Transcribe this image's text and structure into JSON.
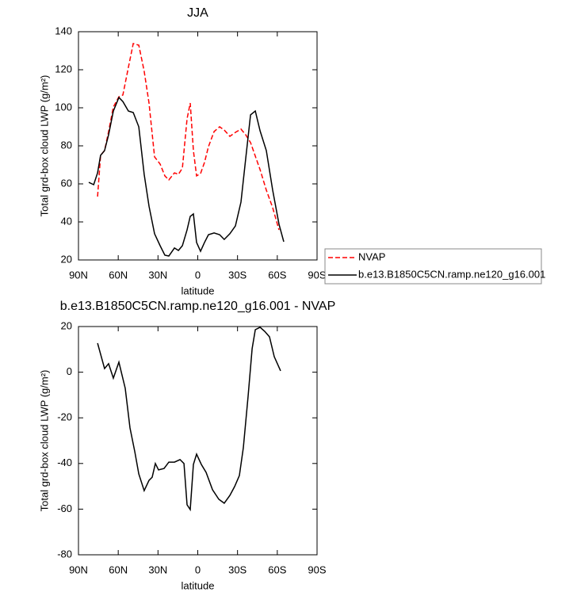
{
  "chart_data": [
    {
      "type": "line",
      "title": "JJA",
      "xlabel": "latitude",
      "ylabel": "Total grd-box cloud LWP (g/m²)",
      "x": [
        82.2,
        78.5,
        75.6,
        73.3,
        70.3,
        67.3,
        63.7,
        59.5,
        56.5,
        52.3,
        48.7,
        44.5,
        40.4,
        36.8,
        32.6,
        28.4,
        24.8,
        21.8,
        17.6,
        14.6,
        11.6,
        8.1,
        5.7,
        3.3,
        0.9,
        -2.1,
        -5.1,
        -8.1,
        -12.3,
        -16.5,
        -20,
        -24.2,
        -28.4,
        -32.6,
        -36.2,
        -39.8,
        -43.4,
        -47,
        -51.7,
        -56.5,
        -61.3,
        -64.9
      ],
      "series": [
        {
          "name": "NVAP",
          "color": "#ff0000",
          "line_style": "dashed",
          "values": [
            null,
            null,
            53.3,
            75,
            77.5,
            87.5,
            100.4,
            105.8,
            106.7,
            121.3,
            133.8,
            132.9,
            119.2,
            102.5,
            74.2,
            70.4,
            64.2,
            62.1,
            65.8,
            65,
            68.3,
            94.2,
            102.5,
            77.5,
            64.2,
            65.4,
            71.3,
            79.6,
            87.5,
            90,
            88.3,
            85,
            87.1,
            88.8,
            85.8,
            81.7,
            74.6,
            67.5,
            56.7,
            47.5,
            35.8,
            null
          ]
        },
        {
          "name": "b.e13.B1850C5CN.ramp.ne120_g16.001",
          "color": "#000000",
          "line_style": "solid",
          "values": [
            60.8,
            59.6,
            65.8,
            75,
            77.5,
            85.8,
            98.3,
            105.4,
            103.3,
            98.3,
            97.5,
            90,
            65,
            48.3,
            33.8,
            27.5,
            22.5,
            22.1,
            26.3,
            25,
            27.5,
            35.8,
            42.9,
            44.2,
            29.2,
            24.6,
            29.2,
            33.3,
            34.2,
            33.3,
            30.8,
            33.8,
            37.9,
            50.4,
            73.3,
            96.3,
            98.3,
            87.9,
            77.5,
            56.7,
            38.8,
            29.6
          ]
        }
      ],
      "xlim": [
        90,
        -90
      ],
      "xticks": [
        {
          "value": 90,
          "label": "90N"
        },
        {
          "value": 60,
          "label": "60N"
        },
        {
          "value": 30,
          "label": "30N"
        },
        0,
        {
          "value": -30,
          "label": "30S"
        },
        {
          "value": -60,
          "label": "60S"
        },
        {
          "value": -90,
          "label": "90S"
        }
      ],
      "ylim": [
        20,
        140
      ],
      "yticks": [
        20,
        40,
        60,
        80,
        100,
        120,
        140
      ],
      "legend": "right"
    },
    {
      "type": "line",
      "title": "b.e13.B1850C5CN.ramp.ne120_g16.001 - NVAP",
      "xlabel": "latitude",
      "ylabel": "Total grd-box cloud LWP (g/m²)",
      "x": [
        75.6,
        70.3,
        67.3,
        63.7,
        59.5,
        54.7,
        51.1,
        47.5,
        44.5,
        40.4,
        36.8,
        34.4,
        32,
        29.6,
        25.4,
        21.8,
        17.6,
        13.4,
        10.4,
        8.1,
        5.7,
        3.3,
        0.9,
        -2.7,
        -6.3,
        -11.1,
        -15.9,
        -20,
        -24.2,
        -27.8,
        -31.4,
        -34.4,
        -38,
        -41,
        -43.4,
        -47,
        -50.5,
        -54.1,
        -57.7,
        -62.5
      ],
      "series": [
        {
          "color": "#000000",
          "line_style": "solid",
          "values": [
            12.7,
            1.6,
            3.7,
            -2.6,
            4.4,
            -7.1,
            -24.4,
            -34.9,
            -44.6,
            -51.9,
            -47.4,
            -46,
            -40,
            -42.8,
            -42.2,
            -39.4,
            -39.4,
            -38.3,
            -40,
            -58.1,
            -60.2,
            -40.4,
            -35.9,
            -40.4,
            -43.9,
            -51.5,
            -55.7,
            -57.4,
            -54,
            -50.1,
            -45.3,
            -33.1,
            -10.6,
            10.3,
            18.6,
            19.7,
            17.9,
            15.5,
            6.8,
            0.6
          ]
        }
      ],
      "xlim": [
        90,
        -90
      ],
      "xticks": [
        {
          "value": 90,
          "label": "90N"
        },
        {
          "value": 60,
          "label": "60N"
        },
        {
          "value": 30,
          "label": "30N"
        },
        0,
        {
          "value": -30,
          "label": "30S"
        },
        {
          "value": -60,
          "label": "60S"
        },
        {
          "value": -90,
          "label": "90S"
        }
      ],
      "ylim": [
        -80,
        20
      ],
      "yticks": [
        -80,
        -60,
        -40,
        -20,
        0,
        20
      ]
    }
  ]
}
